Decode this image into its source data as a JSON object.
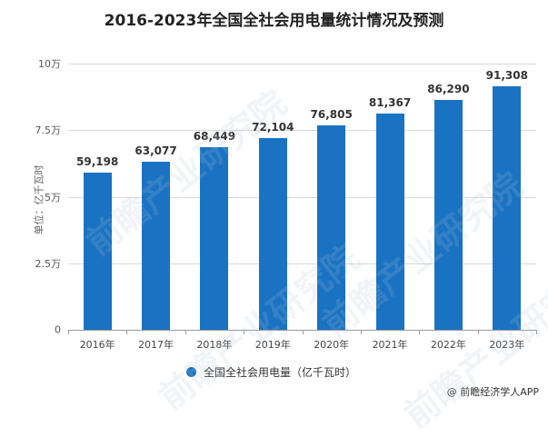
{
  "title": "2016-2023年全国全社会用电量统计情况及预测",
  "chart_data": {
    "type": "bar",
    "title": "2016-2023年全国全社会用电量统计情况及预测",
    "xlabel": "",
    "ylabel": "单位：亿千瓦时",
    "categories": [
      "2016年",
      "2017年",
      "2018年",
      "2019年",
      "2020年",
      "2021年",
      "2022年",
      "2023年"
    ],
    "series": [
      {
        "name": "全国全社会用电量（亿千瓦时）",
        "values": [
          59198,
          63077,
          68449,
          72104,
          76805,
          81367,
          86290,
          91308
        ],
        "color": "#1a73c2"
      }
    ],
    "value_labels": [
      "59,198",
      "63,077",
      "68,449",
      "72,104",
      "76,805",
      "81,367",
      "86,290",
      "91,308"
    ],
    "ylim": [
      0,
      100000
    ],
    "yticks": [
      0,
      25000,
      50000,
      75000,
      100000
    ],
    "ytick_labels": [
      "0",
      "2.5万",
      "5万",
      "7.5万",
      "10万"
    ],
    "grid": true,
    "legend_position": "bottom"
  },
  "legend": {
    "label": "全国全社会用电量（亿千瓦时）"
  },
  "source": "@ 前瞻经济学人APP",
  "watermark": "前瞻产业研究院"
}
